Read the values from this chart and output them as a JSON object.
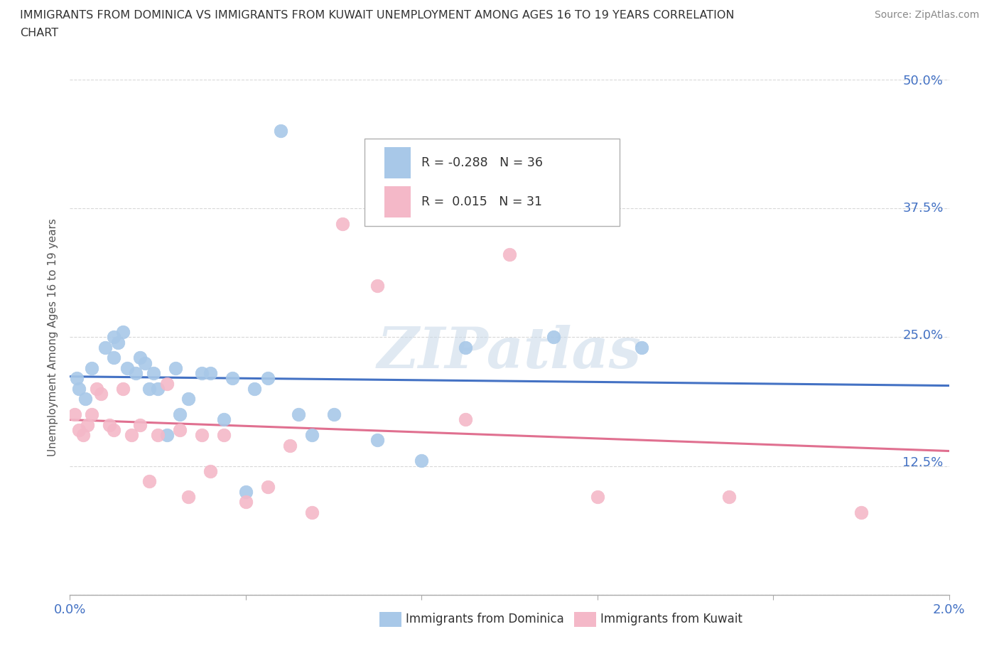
{
  "title_line1": "IMMIGRANTS FROM DOMINICA VS IMMIGRANTS FROM KUWAIT UNEMPLOYMENT AMONG AGES 16 TO 19 YEARS CORRELATION",
  "title_line2": "CHART",
  "source": "Source: ZipAtlas.com",
  "ylabel": "Unemployment Among Ages 16 to 19 years",
  "xlim": [
    0.0,
    0.02
  ],
  "ylim": [
    0.0,
    0.5
  ],
  "yticks": [
    0.0,
    0.125,
    0.25,
    0.375,
    0.5
  ],
  "ytick_labels": [
    "",
    "12.5%",
    "25.0%",
    "37.5%",
    "50.0%"
  ],
  "xticks": [
    0.0,
    0.004,
    0.008,
    0.012,
    0.016,
    0.02
  ],
  "xtick_labels": [
    "0.0%",
    "",
    "",
    "",
    "",
    "2.0%"
  ],
  "dominica_color": "#a8c8e8",
  "dominica_line_color": "#4472c4",
  "kuwait_color": "#f4b8c8",
  "kuwait_line_color": "#e07090",
  "dominica_R": -0.288,
  "dominica_N": 36,
  "kuwait_R": 0.015,
  "kuwait_N": 31,
  "dominica_x": [
    0.0002,
    0.00035,
    0.00015,
    0.0005,
    0.0008,
    0.001,
    0.0012,
    0.001,
    0.0011,
    0.0013,
    0.0015,
    0.0016,
    0.0017,
    0.0018,
    0.0019,
    0.002,
    0.0022,
    0.0024,
    0.0025,
    0.0027,
    0.003,
    0.0032,
    0.0035,
    0.0037,
    0.004,
    0.0042,
    0.0045,
    0.0048,
    0.0052,
    0.0055,
    0.006,
    0.007,
    0.008,
    0.009,
    0.011,
    0.013
  ],
  "dominica_y": [
    0.2,
    0.19,
    0.21,
    0.22,
    0.24,
    0.23,
    0.255,
    0.25,
    0.245,
    0.22,
    0.215,
    0.23,
    0.225,
    0.2,
    0.215,
    0.2,
    0.155,
    0.22,
    0.175,
    0.19,
    0.215,
    0.215,
    0.17,
    0.21,
    0.1,
    0.2,
    0.21,
    0.45,
    0.175,
    0.155,
    0.175,
    0.15,
    0.13,
    0.24,
    0.25,
    0.24
  ],
  "kuwait_x": [
    0.0001,
    0.0002,
    0.0003,
    0.0004,
    0.0005,
    0.0006,
    0.0007,
    0.0009,
    0.001,
    0.0012,
    0.0014,
    0.0016,
    0.0018,
    0.002,
    0.0022,
    0.0025,
    0.0027,
    0.003,
    0.0032,
    0.0035,
    0.004,
    0.0045,
    0.005,
    0.0055,
    0.0062,
    0.007,
    0.009,
    0.01,
    0.012,
    0.015,
    0.018
  ],
  "kuwait_y": [
    0.175,
    0.16,
    0.155,
    0.165,
    0.175,
    0.2,
    0.195,
    0.165,
    0.16,
    0.2,
    0.155,
    0.165,
    0.11,
    0.155,
    0.205,
    0.16,
    0.095,
    0.155,
    0.12,
    0.155,
    0.09,
    0.105,
    0.145,
    0.08,
    0.36,
    0.3,
    0.17,
    0.33,
    0.095,
    0.095,
    0.08
  ],
  "watermark": "ZIPatlas",
  "background_color": "#ffffff",
  "grid_color": "#d8d8d8"
}
